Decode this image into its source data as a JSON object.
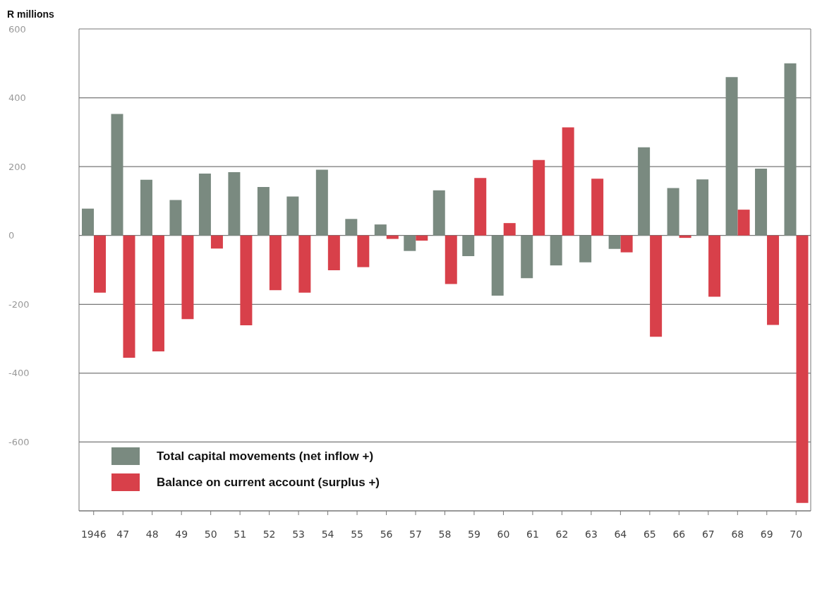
{
  "chart_data": {
    "type": "bar",
    "ylabel": "R millions",
    "categories": [
      "1946",
      "47",
      "48",
      "49",
      "50",
      "51",
      "52",
      "53",
      "54",
      "55",
      "56",
      "57",
      "58",
      "59",
      "60",
      "61",
      "62",
      "63",
      "64",
      "65",
      "66",
      "67",
      "68",
      "69",
      "70"
    ],
    "series": [
      {
        "name": "Total capital movements (net inflow +)",
        "color": "#7a8a80",
        "values": [
          78,
          353,
          162,
          103,
          180,
          184,
          141,
          113,
          191,
          48,
          32,
          -45,
          131,
          -60,
          -175,
          -124,
          -87,
          -78,
          -39,
          256,
          138,
          163,
          460,
          194,
          500
        ]
      },
      {
        "name": "Balance on current account (surplus +)",
        "color": "#d8404a",
        "values": [
          -166,
          -355,
          -337,
          -243,
          -38,
          -261,
          -159,
          -166,
          -101,
          -92,
          -10,
          -15,
          -141,
          167,
          36,
          219,
          314,
          165,
          -49,
          -294,
          -7,
          -178,
          75,
          -260,
          -777
        ]
      }
    ],
    "ylim": [
      -800,
      600
    ],
    "yticks": [
      -600,
      -400,
      -200,
      0,
      200,
      400,
      600
    ],
    "grid": "y",
    "legend": "bottom left"
  }
}
